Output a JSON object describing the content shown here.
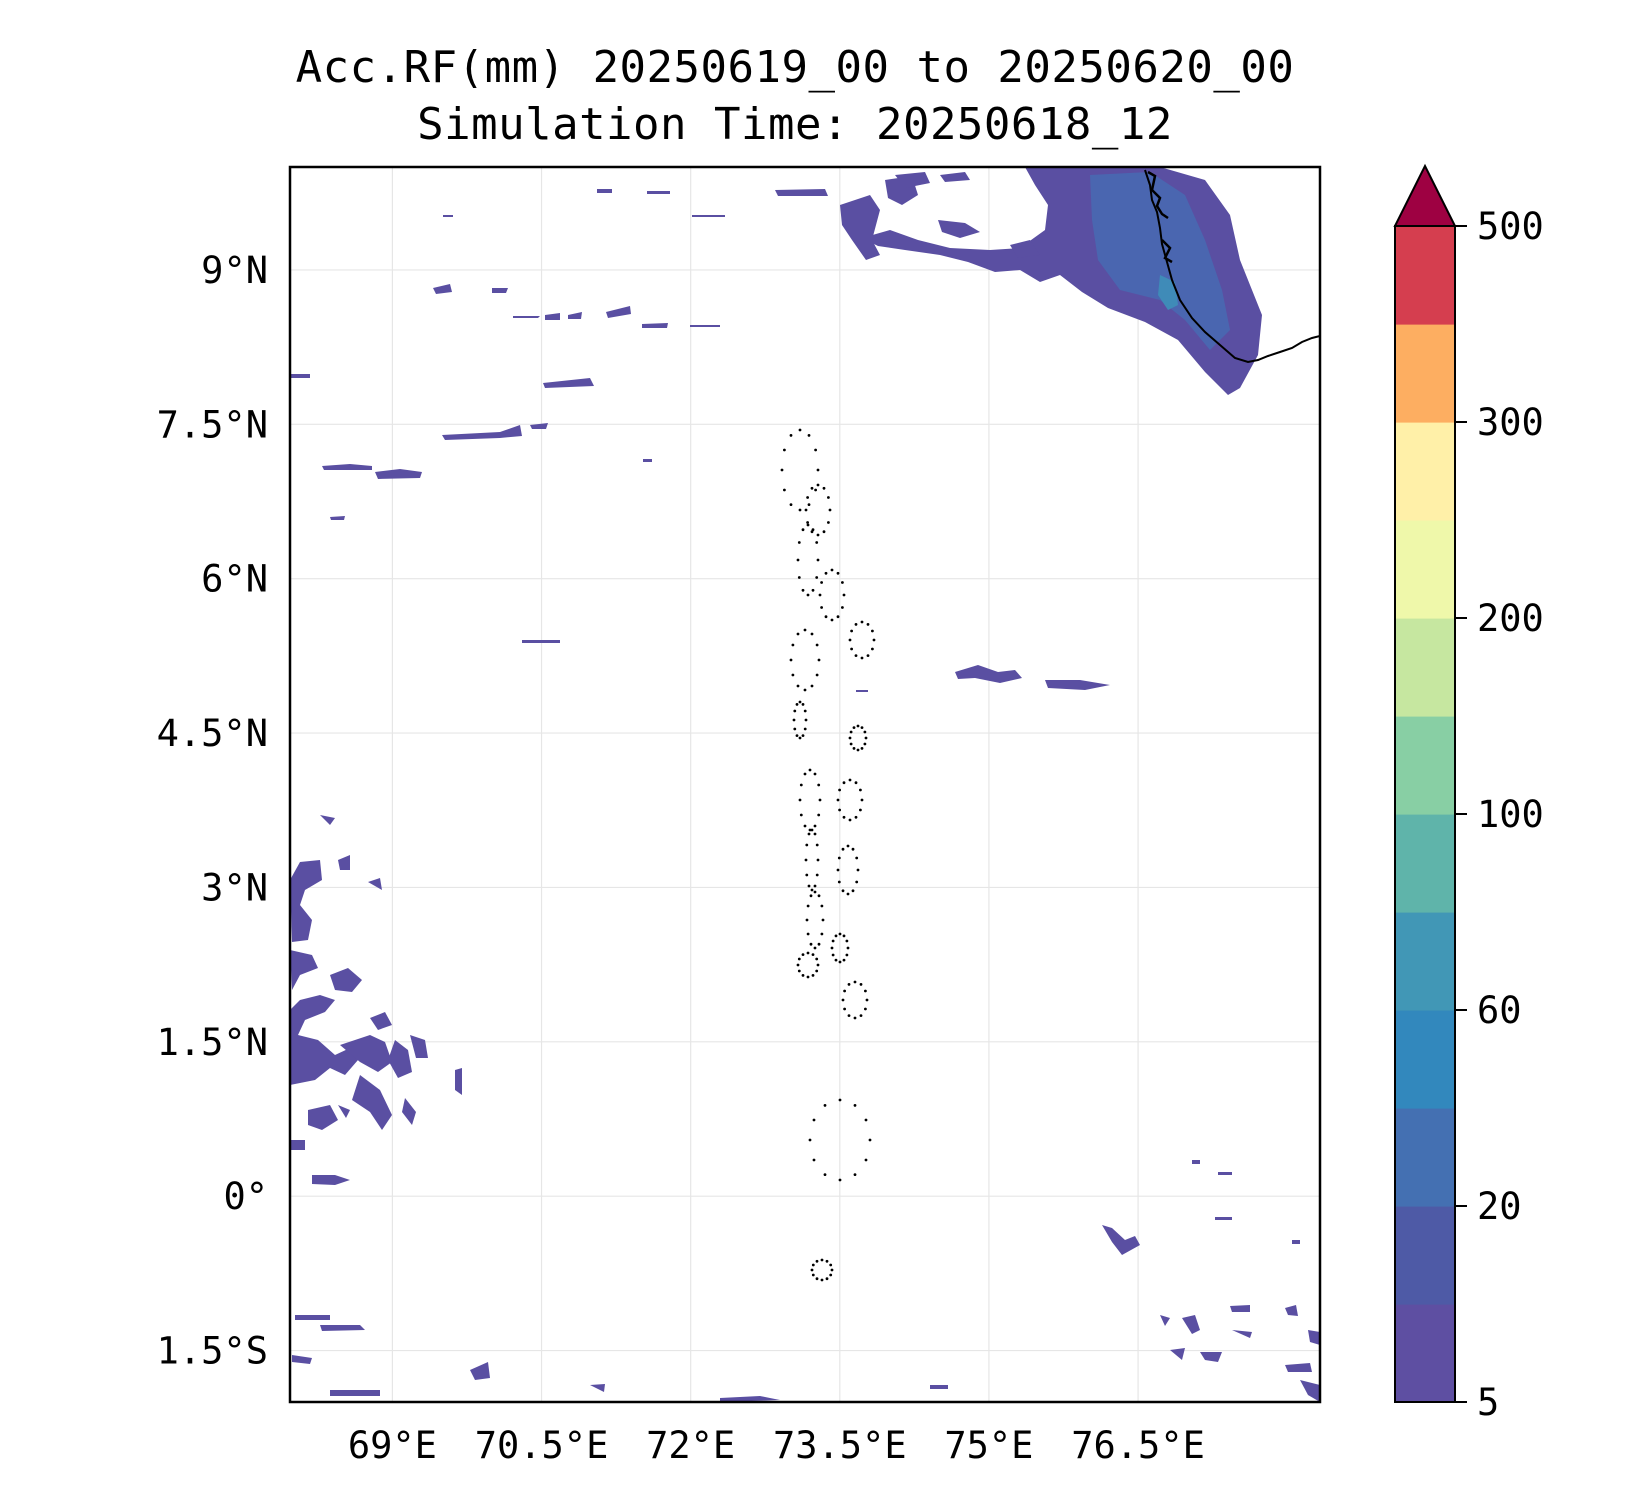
{
  "title": {
    "line1": "Acc.RF(mm) 20250619_00 to 20250620_00",
    "line2": "Simulation Time: 20250618_12"
  },
  "map": {
    "lon_range": [
      67.97,
      78.33
    ],
    "lat_range": [
      -2.0,
      10.0
    ],
    "gridlines": true,
    "lon_ticks": [
      {
        "value": 69,
        "label": "69°E"
      },
      {
        "value": 70.5,
        "label": "70.5°E"
      },
      {
        "value": 72,
        "label": "72°E"
      },
      {
        "value": 73.5,
        "label": "73.5°E"
      },
      {
        "value": 75,
        "label": "75°E"
      },
      {
        "value": 76.5,
        "label": "76.5°E"
      }
    ],
    "lat_ticks": [
      {
        "value": 9,
        "label": "9°N"
      },
      {
        "value": 7.5,
        "label": "7.5°N"
      },
      {
        "value": 6,
        "label": "6°N"
      },
      {
        "value": 4.5,
        "label": "4.5°N"
      },
      {
        "value": 3,
        "label": "3°N"
      },
      {
        "value": 1.5,
        "label": "1.5°N"
      },
      {
        "value": 0,
        "label": "0°"
      },
      {
        "value": -1.5,
        "label": "1.5°S"
      }
    ],
    "rain_color": "#5a4fa2",
    "rain_color_dark": "#4a66b0",
    "rain_color_mid": "#3f8bb8"
  },
  "colorbar": {
    "tick_labels": [
      "5",
      "20",
      "60",
      "100",
      "200",
      "300",
      "500"
    ],
    "extend": "max",
    "extend_color": "#9e0142",
    "colors": [
      "#5e4fa2",
      "#4e5aa6",
      "#4470b2",
      "#3288bd",
      "#4197b6",
      "#5fb4aa",
      "#88cfa4",
      "#c6e7a0",
      "#eff8aa",
      "#fff0a8",
      "#fdae61",
      "#d53e4f"
    ]
  }
}
